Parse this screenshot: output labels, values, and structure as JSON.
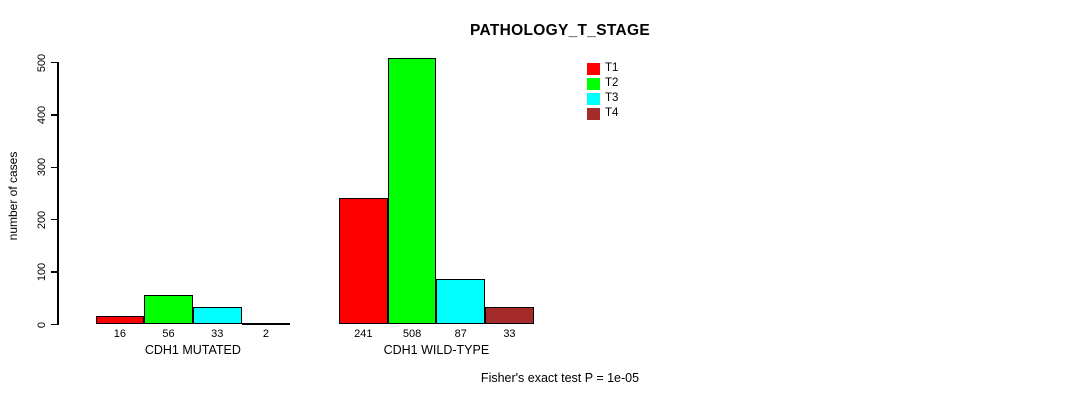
{
  "chart_data": {
    "type": "bar",
    "title": "PATHOLOGY_T_STAGE",
    "xlabel": "",
    "ylabel": "number of cases",
    "ylim": [
      0,
      500
    ],
    "yticks": [
      0,
      100,
      200,
      300,
      400,
      500
    ],
    "grid": false,
    "legend_position": "top-right",
    "categories": [
      "CDH1 MUTATED",
      "CDH1 WILD-TYPE"
    ],
    "series": [
      {
        "name": "T1",
        "color": "#ff0000",
        "values": [
          16,
          241
        ]
      },
      {
        "name": "T2",
        "color": "#00ff00",
        "values": [
          56,
          508
        ]
      },
      {
        "name": "T3",
        "color": "#00ffff",
        "values": [
          33,
          87
        ]
      },
      {
        "name": "T4",
        "color": "#a52a2a",
        "values": [
          2,
          33
        ]
      }
    ],
    "bar_value_labels": {
      "CDH1 MUTATED": [
        "16",
        "56",
        "33",
        "2"
      ],
      "CDH1 WILD-TYPE": [
        "241",
        "508",
        "87",
        "33"
      ]
    },
    "annotation": "Fisher's exact test P = 1e-05"
  },
  "colors": {
    "axis": "#000000",
    "text": "#000000",
    "background": "#ffffff"
  }
}
